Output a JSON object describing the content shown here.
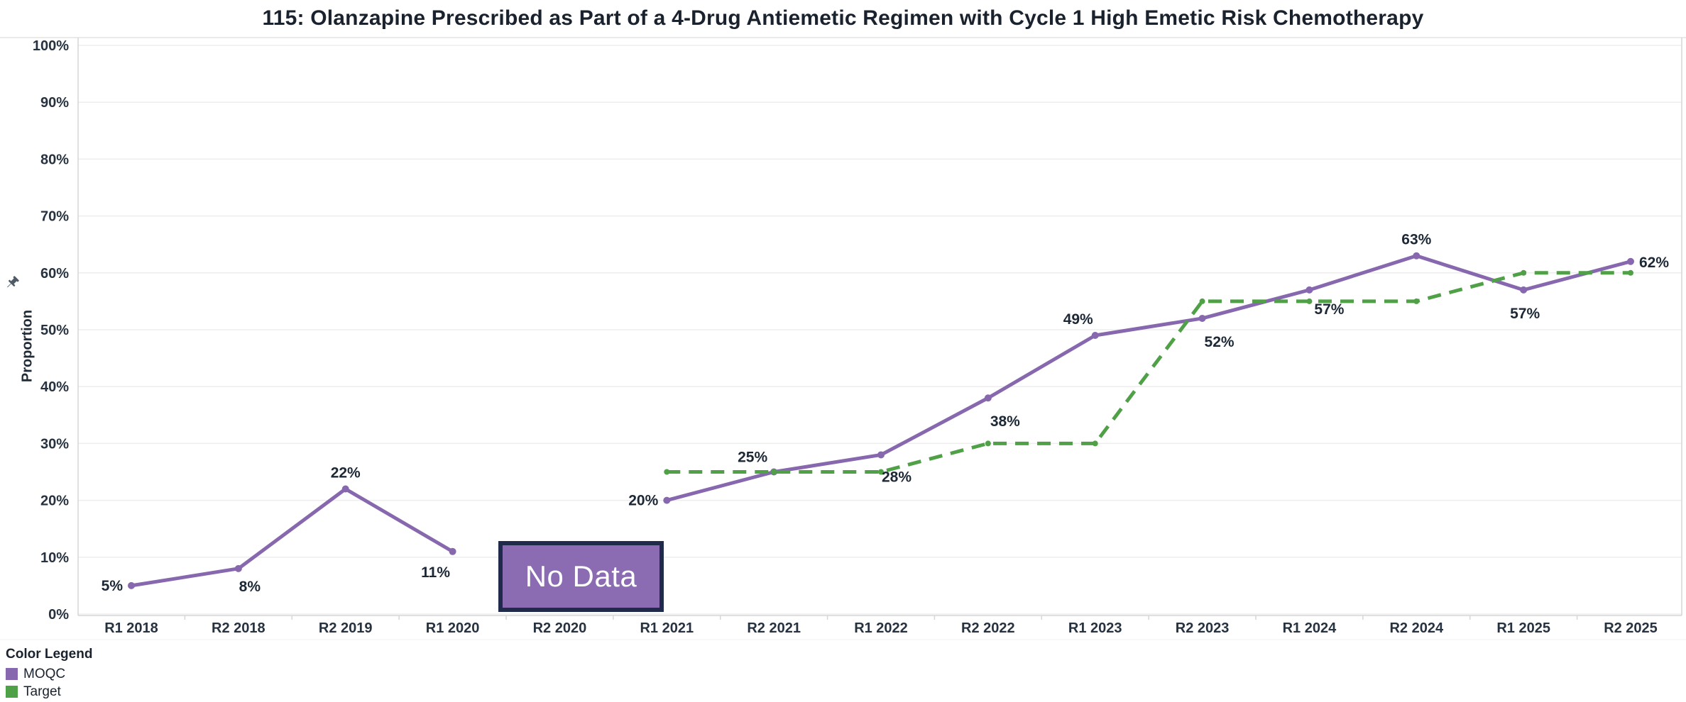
{
  "title": "115: Olanzapine Prescribed as Part of a 4-Drug Antiemetic Regimen with Cycle 1 High Emetic Risk Chemotherapy",
  "y_axis": {
    "title": "Proportion",
    "tick_labels": [
      "0%",
      "10%",
      "20%",
      "30%",
      "40%",
      "50%",
      "60%",
      "70%",
      "80%",
      "90%",
      "100%"
    ]
  },
  "chart_data": {
    "type": "line",
    "title": "115: Olanzapine Prescribed as Part of a 4-Drug Antiemetic Regimen with Cycle 1 High Emetic Risk Chemotherapy",
    "xlabel": "",
    "ylabel": "Proportion",
    "ylim": [
      0,
      100
    ],
    "grid": "horizontal",
    "legend_position": "bottom-left",
    "categories": [
      "R1 2018",
      "R2 2018",
      "R2 2019",
      "R1 2020",
      "R2 2020",
      "R1 2021",
      "R2 2021",
      "R1 2022",
      "R2 2022",
      "R1 2023",
      "R2 2023",
      "R1 2024",
      "R2 2024",
      "R1 2025",
      "R2 2025"
    ],
    "series": [
      {
        "name": "MOQC",
        "color": "#8768ae",
        "line_style": "solid",
        "values": [
          5,
          8,
          22,
          11,
          null,
          20,
          25,
          28,
          38,
          49,
          52,
          57,
          63,
          57,
          62
        ],
        "point_labels": [
          "5%",
          "8%",
          "22%",
          "11%",
          null,
          "20%",
          "25%",
          "28%",
          "38%",
          "49%",
          "52%",
          "57%",
          "63%",
          "57%",
          "62%"
        ]
      },
      {
        "name": "Target",
        "color": "#4fa046",
        "line_style": "dashed",
        "values": [
          null,
          null,
          null,
          null,
          null,
          25,
          25,
          25,
          30,
          30,
          55,
          55,
          55,
          60,
          60
        ],
        "point_labels": null
      }
    ],
    "annotations": [
      {
        "text": "No Data",
        "category": "R2 2020",
        "type": "no-data-box"
      }
    ]
  },
  "no_data": {
    "label": "No Data",
    "fill": "#8b6bb1",
    "border": "#202b4b",
    "text_color": "#ffffff"
  },
  "legend": {
    "heading": "Color Legend",
    "items": [
      {
        "label": "MOQC",
        "color": "#8768ae"
      },
      {
        "label": "Target",
        "color": "#4fa046"
      }
    ]
  },
  "colors": {
    "moqc_line": "#8768ae",
    "target_line": "#4fa046",
    "title_text": "#1a222e",
    "axis_text": "#273240",
    "data_label_text": "#1d2836",
    "gridline": "#ededed",
    "axis_line": "#d6d6d6",
    "pin_icon": "#4e5b66"
  }
}
